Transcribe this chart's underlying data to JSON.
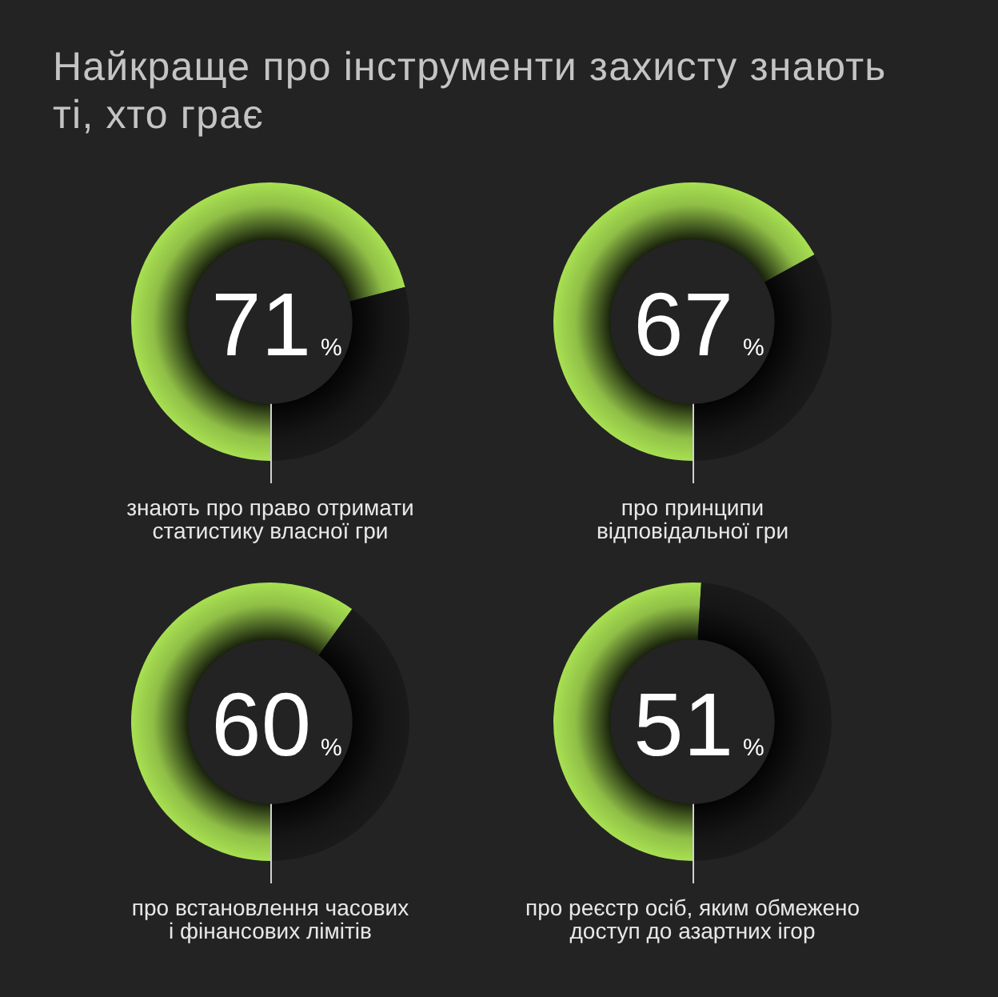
{
  "chart_data": [
    {
      "type": "donut",
      "title": "Найкраще про інструменти захисту знають\nті, хто грає",
      "categories": [
        "знають про право отримати\nстатистику власної гри",
        null
      ],
      "values": [
        71,
        29
      ],
      "colors": [
        "#a8e052",
        "#1a1a1a"
      ],
      "annotations": [
        "71%"
      ]
    },
    {
      "type": "donut",
      "categories": [
        "про принципи\nвідповідальної гри",
        null
      ],
      "values": [
        67,
        33
      ],
      "colors": [
        "#a8e052",
        "#1a1a1a"
      ],
      "annotations": [
        "67%"
      ]
    },
    {
      "type": "donut",
      "categories": [
        "про встановлення часових\nі фінансових лімітів",
        null
      ],
      "values": [
        60,
        40
      ],
      "colors": [
        "#a8e052",
        "#1a1a1a"
      ],
      "annotations": [
        "60%"
      ]
    },
    {
      "type": "donut",
      "categories": [
        "про реєстр осіб, яким обмежено\nдоступ до азартних ігор",
        null
      ],
      "values": [
        51,
        49
      ],
      "colors": [
        "#a8e052",
        "#1a1a1a"
      ],
      "annotations": [
        "51%"
      ]
    }
  ]
}
